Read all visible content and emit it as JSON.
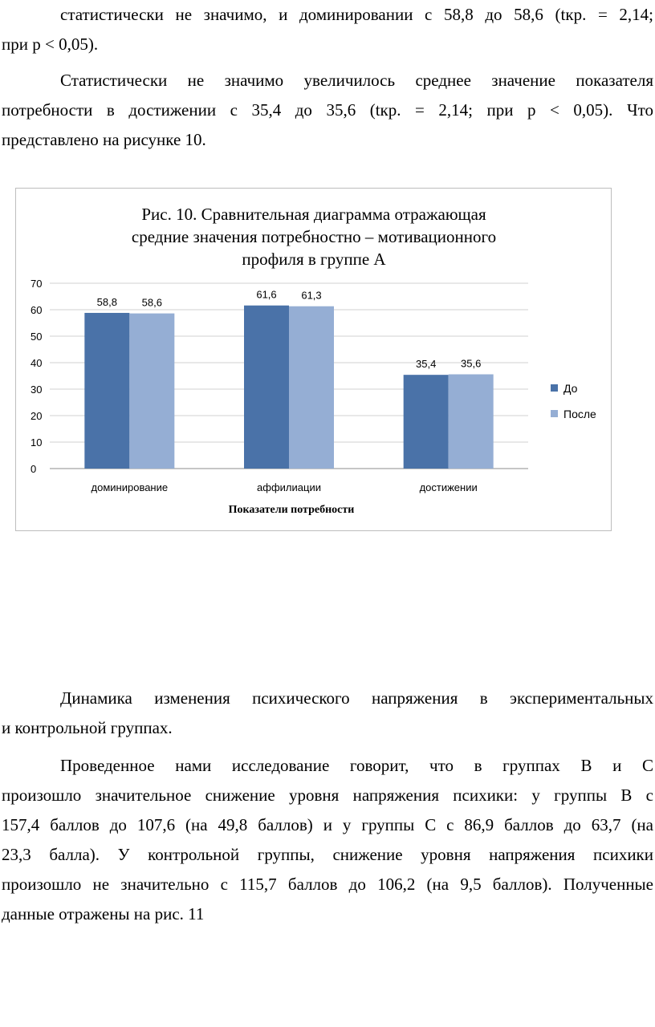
{
  "paragraph_top": {
    "lines": [
      "статистически не значимо, и доминировании с 58,8 до 58,6 (tкр. = 2,14;",
      "при р < 0,05)."
    ]
  },
  "paragraph_2": {
    "lines": [
      "Статистически не значимо увеличилось среднее значение показателя",
      "потребности в достижении с 35,4 до 35,6 (tкр. =  2,14; при р < 0,05). Что",
      "представлено на рисунке 10."
    ]
  },
  "chart_data": {
    "type": "bar",
    "title_lines": [
      "Рис. 10. Сравнительная диаграмма отражающая",
      "средние значения потребностно – мотивационного",
      "профиля в группе А"
    ],
    "categories": [
      "доминирование",
      "аффилиации",
      "достижении"
    ],
    "series": [
      {
        "name": "До",
        "values": [
          58.8,
          61.6,
          35.4
        ],
        "labels": [
          "58,8",
          "61,6",
          "35,4"
        ],
        "color": "#4a72a8"
      },
      {
        "name": "После",
        "values": [
          58.6,
          61.3,
          35.6
        ],
        "labels": [
          "58,6",
          "61,3",
          "35,6"
        ],
        "color": "#95aed4"
      }
    ],
    "xlabel": "Показатели   потребности",
    "ylabel": "",
    "ylim": [
      0,
      70
    ],
    "yticks": [
      0,
      10,
      20,
      30,
      40,
      50,
      60,
      70
    ],
    "grid": true,
    "legend": "right"
  },
  "paragraph_3": {
    "lines": [
      "Динамика изменения психического напряжения в экспериментальных",
      "и контрольной группах."
    ]
  },
  "paragraph_4": {
    "lines": [
      "Проведенное нами исследование говорит, что в группах В и С",
      "произошло значительное снижение уровня напряжения психики: у группы В с",
      "157,4 баллов до 107,6 (на 49,8 баллов) и у группы С с 86,9 баллов до 63,7 (на",
      "23,3 балла). У контрольной группы, снижение уровня напряжения психики",
      "произошло не значительно с 115,7 баллов до 106,2 (на 9,5 баллов). Полученные",
      "данные отражены на рис. 11"
    ]
  }
}
